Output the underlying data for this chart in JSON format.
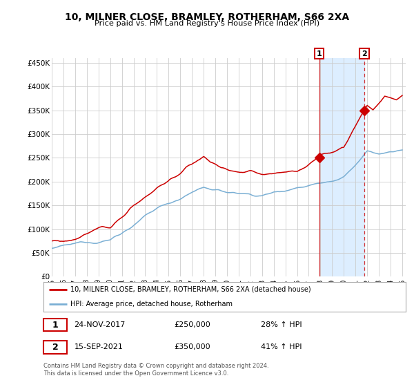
{
  "title": "10, MILNER CLOSE, BRAMLEY, ROTHERHAM, S66 2XA",
  "subtitle": "Price paid vs. HM Land Registry's House Price Index (HPI)",
  "ylim": [
    0,
    460000
  ],
  "yticks": [
    0,
    50000,
    100000,
    150000,
    200000,
    250000,
    300000,
    350000,
    400000,
    450000
  ],
  "ytick_labels": [
    "£0",
    "£50K",
    "£100K",
    "£150K",
    "£200K",
    "£250K",
    "£300K",
    "£350K",
    "£400K",
    "£450K"
  ],
  "legend_line1": "10, MILNER CLOSE, BRAMLEY, ROTHERHAM, S66 2XA (detached house)",
  "legend_line2": "HPI: Average price, detached house, Rotherham",
  "annotation1_date": "24-NOV-2017",
  "annotation1_price": "£250,000",
  "annotation1_change": "28% ↑ HPI",
  "annotation1_value": 250000,
  "annotation1_year": 2017.9,
  "annotation2_date": "15-SEP-2021",
  "annotation2_price": "£350,000",
  "annotation2_change": "41% ↑ HPI",
  "annotation2_value": 350000,
  "annotation2_year": 2021.75,
  "red_color": "#cc0000",
  "blue_color": "#7aafd4",
  "shade_color": "#ddeeff",
  "footer": "Contains HM Land Registry data © Crown copyright and database right 2024.\nThis data is licensed under the Open Government Licence v3.0.",
  "background_color": "#ffffff"
}
